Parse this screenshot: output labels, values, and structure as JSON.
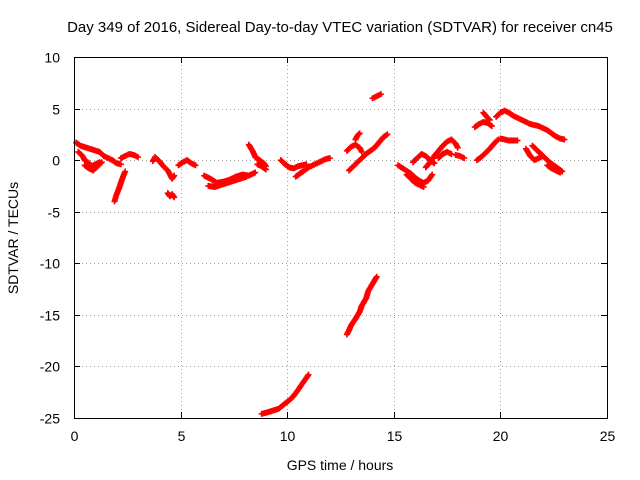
{
  "chart_data": {
    "type": "scatter",
    "title": "Day 349 of 2016, Sidereal Day-to-day VTEC variation (SDTVAR) for receiver cn45",
    "xlabel": "GPS time / hours",
    "ylabel": "SDTVAR / TECUs",
    "xlim": [
      0,
      25
    ],
    "ylim": [
      -25,
      10
    ],
    "xticks": [
      0,
      5,
      10,
      15,
      20,
      25
    ],
    "yticks": [
      -25,
      -20,
      -15,
      -10,
      -5,
      0,
      5,
      10
    ],
    "xtick_labels": [
      "0",
      "5",
      "10",
      "15",
      "20",
      "25"
    ],
    "ytick_labels": [
      "-25",
      "-20",
      "-15",
      "-10",
      "-5",
      "0",
      "5",
      "10"
    ],
    "grid": true,
    "marker": "+",
    "colors": {
      "series": "#ff0000",
      "grid": "#a0a0a0",
      "axis": "#000000"
    },
    "series": [
      {
        "name": "SDTVAR",
        "tracks": [
          [
            [
              0.1,
              1.7
            ],
            [
              0.3,
              1.4
            ],
            [
              0.6,
              1.2
            ],
            [
              0.9,
              1.0
            ],
            [
              1.2,
              0.8
            ],
            [
              1.4,
              0.4
            ],
            [
              1.6,
              0.2
            ],
            [
              1.8,
              0.0
            ],
            [
              2.0,
              -0.3
            ],
            [
              2.2,
              -0.4
            ]
          ],
          [
            [
              0.2,
              0.8
            ],
            [
              0.4,
              0.4
            ],
            [
              0.5,
              0.0
            ],
            [
              0.7,
              -0.3
            ],
            [
              0.8,
              -0.6
            ],
            [
              1.0,
              -0.4
            ],
            [
              1.2,
              -0.2
            ]
          ],
          [
            [
              0.5,
              -0.5
            ],
            [
              0.7,
              -0.8
            ],
            [
              0.9,
              -1.0
            ],
            [
              1.1,
              -0.6
            ],
            [
              1.3,
              -0.2
            ]
          ],
          [
            [
              1.9,
              -4.0
            ],
            [
              2.0,
              -3.3
            ],
            [
              2.1,
              -2.8
            ],
            [
              2.2,
              -2.2
            ],
            [
              2.3,
              -1.6
            ],
            [
              2.4,
              -1.1
            ]
          ],
          [
            [
              2.2,
              0.2
            ],
            [
              2.4,
              0.4
            ],
            [
              2.6,
              0.6
            ],
            [
              2.8,
              0.5
            ],
            [
              3.0,
              0.3
            ]
          ],
          [
            [
              3.7,
              -0.1
            ],
            [
              3.8,
              0.3
            ],
            [
              4.0,
              -0.1
            ],
            [
              4.2,
              -0.6
            ],
            [
              4.4,
              -1.0
            ],
            [
              4.5,
              -1.4
            ],
            [
              4.6,
              -1.8
            ],
            [
              4.7,
              -1.5
            ]
          ],
          [
            [
              4.4,
              -3.2
            ],
            [
              4.5,
              -3.5
            ],
            [
              4.6,
              -3.3
            ],
            [
              4.7,
              -3.6
            ]
          ],
          [
            [
              4.9,
              -0.5
            ],
            [
              5.1,
              -0.2
            ],
            [
              5.3,
              0.0
            ],
            [
              5.5,
              -0.3
            ],
            [
              5.7,
              -0.5
            ]
          ],
          [
            [
              6.1,
              -1.5
            ],
            [
              6.4,
              -1.8
            ],
            [
              6.7,
              -2.2
            ],
            [
              7.0,
              -2.1
            ],
            [
              7.3,
              -1.9
            ],
            [
              7.6,
              -1.6
            ],
            [
              7.9,
              -1.4
            ],
            [
              8.2,
              -1.5
            ],
            [
              8.5,
              -1.2
            ]
          ],
          [
            [
              6.3,
              -2.5
            ],
            [
              6.6,
              -2.6
            ],
            [
              6.9,
              -2.4
            ],
            [
              7.2,
              -2.2
            ],
            [
              7.5,
              -2.0
            ],
            [
              7.8,
              -1.8
            ],
            [
              8.1,
              -1.6
            ]
          ],
          [
            [
              8.2,
              1.5
            ],
            [
              8.4,
              0.8
            ],
            [
              8.5,
              0.3
            ],
            [
              8.7,
              0.0
            ],
            [
              8.9,
              -0.3
            ],
            [
              9.0,
              -0.6
            ]
          ],
          [
            [
              8.6,
              -0.4
            ],
            [
              8.8,
              -0.6
            ],
            [
              9.0,
              -0.9
            ]
          ],
          [
            [
              8.8,
              -24.6
            ],
            [
              9.0,
              -24.5
            ],
            [
              9.3,
              -24.3
            ],
            [
              9.6,
              -24.1
            ],
            [
              9.9,
              -23.6
            ],
            [
              10.2,
              -23.1
            ],
            [
              10.4,
              -22.6
            ],
            [
              10.6,
              -22.0
            ],
            [
              10.8,
              -21.4
            ],
            [
              11.0,
              -20.8
            ]
          ],
          [
            [
              9.7,
              0.0
            ],
            [
              9.9,
              -0.4
            ],
            [
              10.1,
              -0.7
            ],
            [
              10.3,
              -0.8
            ],
            [
              10.5,
              -0.6
            ],
            [
              10.7,
              -0.5
            ],
            [
              10.9,
              -0.4
            ]
          ],
          [
            [
              10.4,
              -1.6
            ],
            [
              10.6,
              -1.3
            ],
            [
              10.8,
              -1.0
            ],
            [
              11.0,
              -0.7
            ],
            [
              11.2,
              -0.5
            ],
            [
              11.4,
              -0.3
            ],
            [
              11.6,
              -0.1
            ],
            [
              11.8,
              0.1
            ],
            [
              12.0,
              0.2
            ]
          ],
          [
            [
              12.8,
              -16.9
            ],
            [
              12.9,
              -16.5
            ],
            [
              13.0,
              -16.0
            ],
            [
              13.2,
              -15.4
            ],
            [
              13.4,
              -14.7
            ],
            [
              13.5,
              -14.1
            ],
            [
              13.7,
              -13.4
            ],
            [
              13.8,
              -12.7
            ],
            [
              14.0,
              -12.0
            ],
            [
              14.2,
              -11.3
            ]
          ],
          [
            [
              12.9,
              -1.0
            ],
            [
              13.1,
              -0.6
            ],
            [
              13.3,
              -0.2
            ],
            [
              13.5,
              0.2
            ],
            [
              13.7,
              0.6
            ],
            [
              13.9,
              0.9
            ],
            [
              14.1,
              1.2
            ],
            [
              14.3,
              1.7
            ],
            [
              14.5,
              2.2
            ],
            [
              14.7,
              2.5
            ]
          ],
          [
            [
              12.8,
              0.9
            ],
            [
              13.0,
              1.3
            ],
            [
              13.2,
              1.5
            ],
            [
              13.4,
              1.2
            ],
            [
              13.5,
              0.8
            ]
          ],
          [
            [
              13.2,
              2.0
            ],
            [
              13.3,
              2.4
            ],
            [
              13.4,
              2.6
            ]
          ],
          [
            [
              14.0,
              6.0
            ],
            [
              14.2,
              6.2
            ],
            [
              14.4,
              6.4
            ]
          ],
          [
            [
              15.2,
              -0.5
            ],
            [
              15.5,
              -0.9
            ],
            [
              15.8,
              -1.3
            ],
            [
              16.0,
              -1.7
            ],
            [
              16.2,
              -2.0
            ],
            [
              16.4,
              -2.2
            ],
            [
              16.6,
              -2.0
            ],
            [
              16.8,
              -1.4
            ]
          ],
          [
            [
              15.6,
              -1.4
            ],
            [
              15.8,
              -1.8
            ],
            [
              16.0,
              -2.2
            ],
            [
              16.2,
              -2.4
            ],
            [
              16.4,
              -2.6
            ]
          ],
          [
            [
              15.9,
              -0.2
            ],
            [
              16.1,
              0.2
            ],
            [
              16.3,
              0.6
            ],
            [
              16.5,
              0.4
            ],
            [
              16.7,
              0.0
            ],
            [
              16.9,
              -0.3
            ]
          ],
          [
            [
              16.5,
              -0.7
            ],
            [
              16.7,
              -0.2
            ],
            [
              16.9,
              0.4
            ],
            [
              17.1,
              0.9
            ],
            [
              17.3,
              1.4
            ],
            [
              17.5,
              1.8
            ],
            [
              17.7,
              2.0
            ],
            [
              17.9,
              1.6
            ],
            [
              18.0,
              1.2
            ]
          ],
          [
            [
              17.1,
              0.2
            ],
            [
              17.3,
              0.6
            ],
            [
              17.5,
              0.8
            ],
            [
              17.7,
              0.6
            ]
          ],
          [
            [
              17.9,
              0.5
            ],
            [
              18.1,
              0.4
            ],
            [
              18.3,
              0.2
            ]
          ],
          [
            [
              18.8,
              3.2
            ],
            [
              19.0,
              3.5
            ],
            [
              19.2,
              3.7
            ],
            [
              19.4,
              3.6
            ],
            [
              19.6,
              3.3
            ]
          ],
          [
            [
              19.2,
              4.6
            ],
            [
              19.4,
              4.1
            ],
            [
              19.5,
              3.9
            ]
          ],
          [
            [
              18.9,
              0.0
            ],
            [
              19.1,
              0.3
            ],
            [
              19.3,
              0.7
            ],
            [
              19.5,
              1.1
            ],
            [
              19.7,
              1.6
            ],
            [
              19.9,
              2.0
            ]
          ],
          [
            [
              19.8,
              4.2
            ],
            [
              20.0,
              4.6
            ],
            [
              20.2,
              4.8
            ],
            [
              20.4,
              4.6
            ],
            [
              20.6,
              4.3
            ],
            [
              20.8,
              4.1
            ],
            [
              21.0,
              3.9
            ],
            [
              21.2,
              3.7
            ],
            [
              21.4,
              3.5
            ],
            [
              21.6,
              3.4
            ],
            [
              21.8,
              3.3
            ],
            [
              22.0,
              3.1
            ],
            [
              22.2,
              2.9
            ],
            [
              22.4,
              2.6
            ],
            [
              22.6,
              2.3
            ],
            [
              22.8,
              2.1
            ],
            [
              23.0,
              2.0
            ]
          ],
          [
            [
              20.0,
              2.1
            ],
            [
              20.2,
              2.0
            ],
            [
              20.4,
              1.9
            ],
            [
              20.6,
              1.9
            ],
            [
              20.8,
              1.9
            ]
          ],
          [
            [
              21.2,
              1.1
            ],
            [
              21.4,
              0.4
            ],
            [
              21.6,
              0.0
            ],
            [
              21.8,
              0.2
            ],
            [
              22.0,
              0.4
            ]
          ],
          [
            [
              21.5,
              1.4
            ],
            [
              21.7,
              1.0
            ],
            [
              21.9,
              0.6
            ],
            [
              22.1,
              0.2
            ],
            [
              22.3,
              -0.2
            ],
            [
              22.5,
              -0.5
            ],
            [
              22.7,
              -0.8
            ],
            [
              22.9,
              -1.1
            ]
          ],
          [
            [
              22.2,
              -0.5
            ],
            [
              22.4,
              -0.8
            ],
            [
              22.6,
              -1.0
            ],
            [
              22.8,
              -1.2
            ]
          ]
        ]
      }
    ]
  }
}
